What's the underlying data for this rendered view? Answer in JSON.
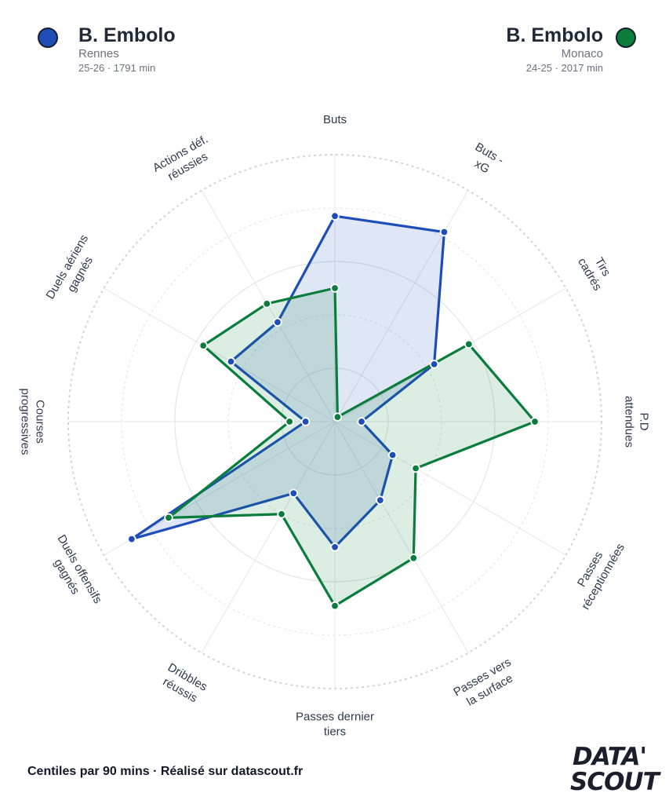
{
  "players": [
    {
      "name": "B. Embolo",
      "club": "Rennes",
      "meta": "25-26 · 1791 min",
      "color": "#1f4db8",
      "fill": "rgba(31,77,184,0.14)"
    },
    {
      "name": "B. Embolo",
      "club": "Monaco",
      "meta": "24-25 · 2017 min",
      "color": "#0a7d3c",
      "fill": "rgba(10,125,60,0.14)"
    }
  ],
  "footer": "Centiles par 90 mins · Réalisé sur datascout.fr",
  "logo": {
    "line1": "DATA'",
    "line2": "SCOUT"
  },
  "chart_data": {
    "type": "radar",
    "range": [
      0,
      100
    ],
    "axes": [
      "Buts",
      "Buts - xG",
      "Tirs cadrés",
      "P.D attendues",
      "Passes réceptionnées",
      "Passes vers la surface",
      "Passes dernier tiers",
      "Dribbles réussis",
      "Duels offensifs gagnés",
      "Courses progressives",
      "Duels aériens gagnés",
      "Actions déf. réussies"
    ],
    "series": [
      {
        "name": "Rennes",
        "values": [
          77,
          82,
          43,
          10,
          25,
          34,
          47,
          31,
          88,
          11,
          45,
          43
        ]
      },
      {
        "name": "Monaco",
        "values": [
          50,
          2,
          58,
          75,
          35,
          59,
          69,
          40,
          72,
          17,
          57,
          51
        ]
      }
    ]
  }
}
